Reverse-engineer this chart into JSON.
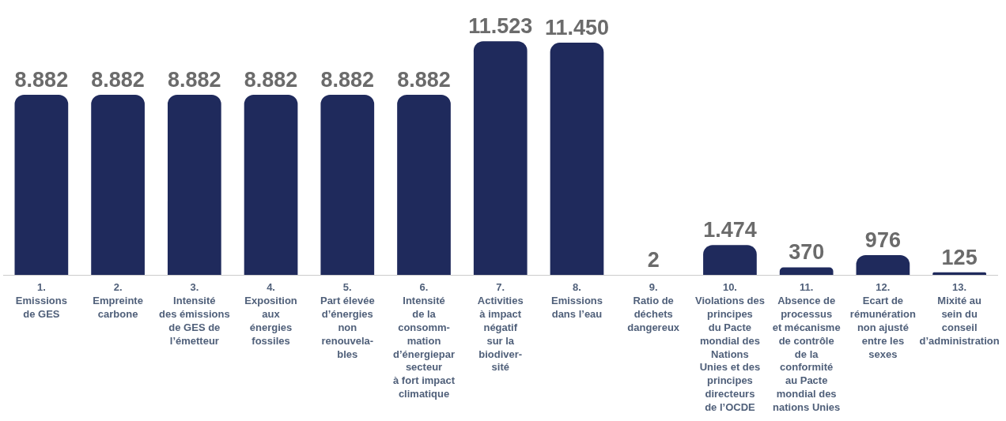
{
  "chart_data": {
    "type": "bar",
    "categories": [
      "1.\nEmissions\nde GES",
      "2.\nEmpreinte\ncarbone",
      "3.\nIntensité\ndes émissions\nde GES de\nl’émetteur",
      "4.\nExposition\naux\nénergies\nfossiles",
      "5.\nPart élevée\nd’énergies\nnon\nrenouvela-\nbles",
      "6.\nIntensité\nde la\nconsomm-\nmation\nd’énergiepar\nsecteur\nà fort impact\nclimatique",
      "7.\nActivities\nà impact\nnégatif\nsur la\nbiodiver-\nsité",
      "8.\nEmissions\ndans l’eau",
      "9.\nRatio de\ndéchets\ndangereux",
      "10.\nViolations des\nprincipes\ndu Pacte\nmondial des\nNations\nUnies et des\nprincipes\ndirecteurs\nde l’OCDE",
      "11.\nAbsence de\nprocessus\net mécanisme\nde contrôle\nde la\nconformité\nau Pacte\nmondial des\nnations Unies",
      "12.\nEcart de\nrémunération\nnon ajusté\nentre les\nsexes",
      "13.\nMixité au\nsein du\nconseil\nd’administration"
    ],
    "values": [
      8882,
      8882,
      8882,
      8882,
      8882,
      8882,
      11523,
      11450,
      2,
      1474,
      370,
      976,
      125
    ],
    "value_labels": [
      "8.882",
      "8.882",
      "8.882",
      "8.882",
      "8.882",
      "8.882",
      "11.523",
      "11.450",
      "2",
      "1.474",
      "370",
      "976",
      "125"
    ],
    "color": "#1f2a5c"
  }
}
